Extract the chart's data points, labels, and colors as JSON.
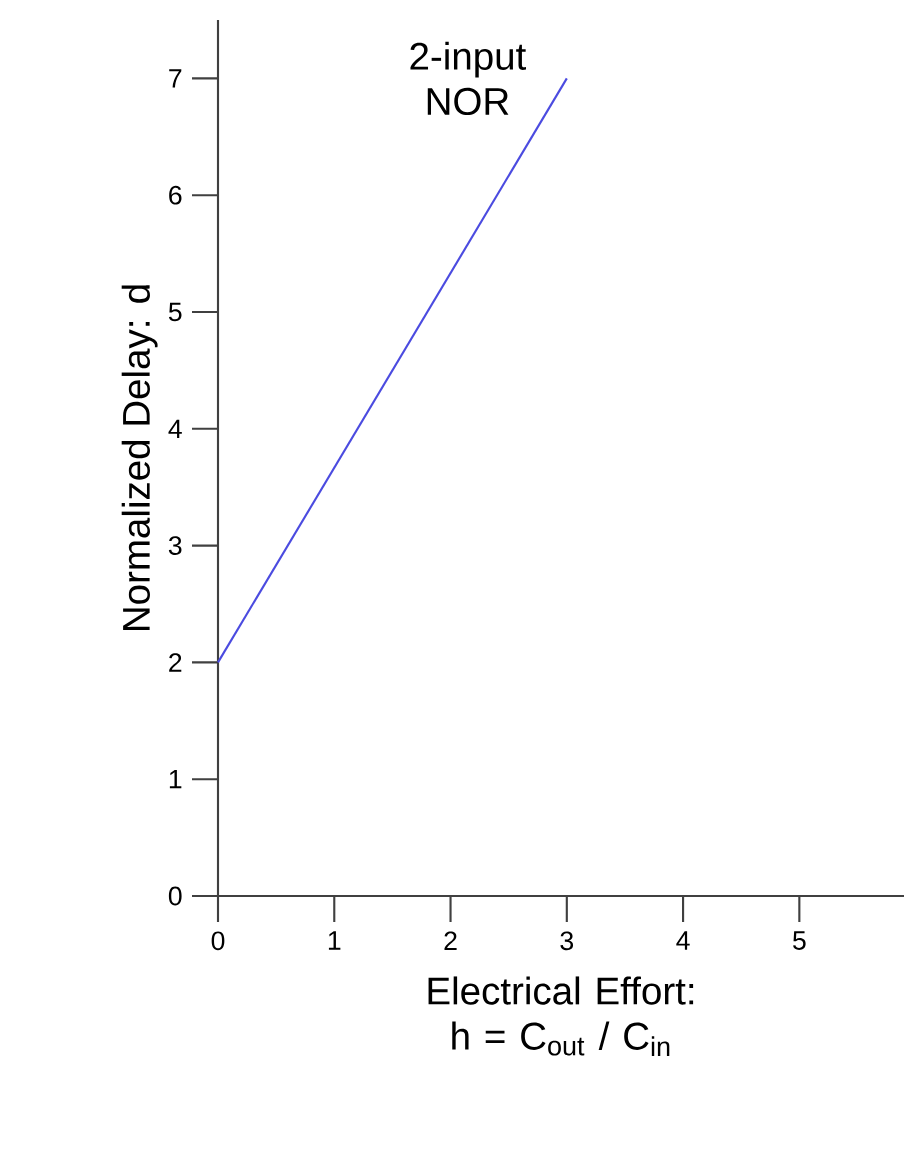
{
  "chart_data": {
    "type": "line",
    "xlabel": "Electrical Effort: h = C$_{out}$ / C$_{in}$",
    "ylabel": "Normalized Delay: d",
    "x": [
      0,
      3
    ],
    "series": [
      {
        "name": "2-input NOR",
        "color": "#4b4be0",
        "values": [
          2,
          7
        ]
      }
    ],
    "xlim": [
      0,
      5.9
    ],
    "ylim": [
      0,
      7.5
    ],
    "xticks": [
      0,
      1,
      2,
      3,
      4,
      5
    ],
    "yticks": [
      0,
      1,
      2,
      3,
      4,
      5,
      6,
      7
    ]
  }
}
